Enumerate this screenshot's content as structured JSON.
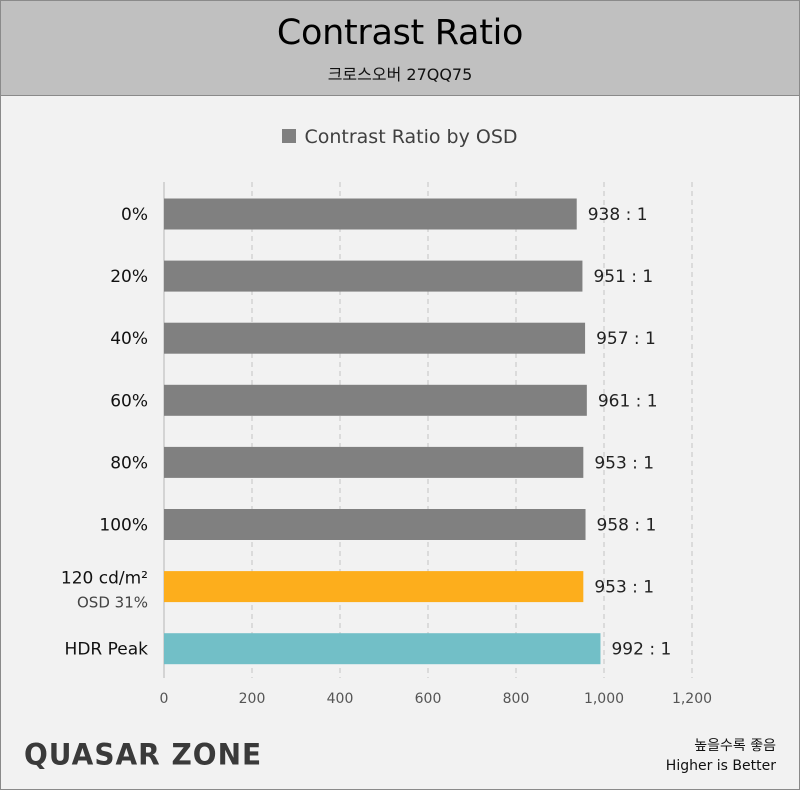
{
  "header": {
    "title": "Contrast Ratio",
    "subtitle": "크로스오버 27QQ75"
  },
  "legend_label": "Contrast Ratio by OSD",
  "footer": {
    "logo_text": "QUASAR ZONE",
    "note_ko": "높을수록 좋음",
    "note_en": "Higher is Better"
  },
  "chart_data": {
    "type": "bar",
    "orientation": "horizontal",
    "title": "Contrast Ratio",
    "subtitle": "크로스오버 27QQ75",
    "categories": [
      {
        "label": "0%",
        "sublabel": ""
      },
      {
        "label": "20%",
        "sublabel": ""
      },
      {
        "label": "40%",
        "sublabel": ""
      },
      {
        "label": "60%",
        "sublabel": ""
      },
      {
        "label": "80%",
        "sublabel": ""
      },
      {
        "label": "100%",
        "sublabel": ""
      },
      {
        "label": "120 cd/m²",
        "sublabel": "OSD 31%"
      },
      {
        "label": "HDR Peak",
        "sublabel": ""
      }
    ],
    "series": [
      {
        "name": "Contrast Ratio by OSD",
        "color": "#808080"
      }
    ],
    "values": [
      938,
      951,
      957,
      961,
      953,
      958,
      953,
      992
    ],
    "value_labels": [
      "938 : 1",
      "951 : 1",
      "957 : 1",
      "961 : 1",
      "953 : 1",
      "958 : 1",
      "953 : 1",
      "992 : 1"
    ],
    "bar_colors": [
      "#808080",
      "#808080",
      "#808080",
      "#808080",
      "#808080",
      "#808080",
      "#fdae1c",
      "#72bfc7"
    ],
    "xlim": [
      0,
      1200
    ],
    "xticks": [
      0,
      200,
      400,
      600,
      800,
      1000,
      1200
    ],
    "xtick_labels": [
      "0",
      "200",
      "400",
      "600",
      "800",
      "1,000",
      "1,200"
    ],
    "grid": "vertical-dashed",
    "legend_position": "top-center"
  }
}
